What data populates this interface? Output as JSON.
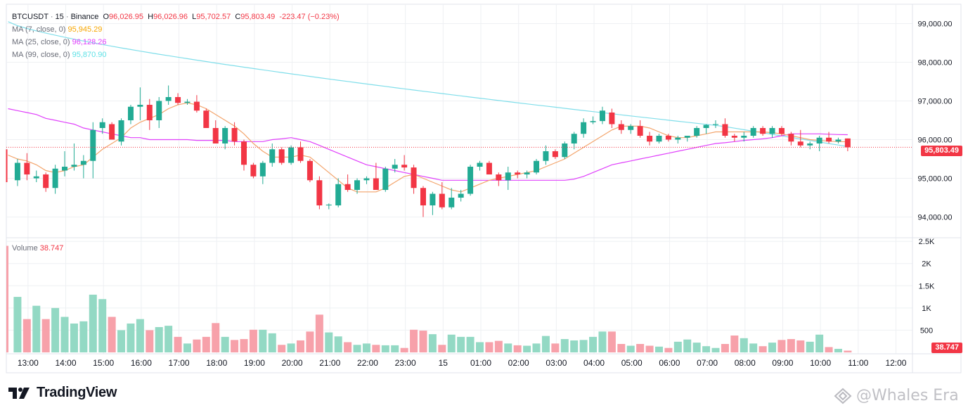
{
  "header": {
    "symbol": "BTCUSDT",
    "interval": "15",
    "exchange": "Binance",
    "separator": "·",
    "o_label": "O",
    "o_value": "96,026.95",
    "h_label": "H",
    "h_value": "96,026.96",
    "l_label": "L",
    "l_value": "95,702.57",
    "c_label": "C",
    "c_value": "95,803.49",
    "change": "-223.47 (−0.23%)"
  },
  "indicators": [
    {
      "label": "MA (7, close, 0)",
      "value": "95,945.29",
      "color": "#f7a600"
    },
    {
      "label": "MA (25, close, 0)",
      "value": "96,128.26",
      "color": "#e040fb"
    },
    {
      "label": "MA (99, close, 0)",
      "value": "95,870.90",
      "color": "#5ce1e6"
    }
  ],
  "volume_legend": {
    "label": "Volume",
    "value": "38.747"
  },
  "last_price_badge": "95,803.49",
  "last_volume_badge": "38.747",
  "brand": {
    "name": "TradingView"
  },
  "watermark": {
    "text": "@Whales Era"
  },
  "colors": {
    "up": "#26a69a",
    "up_fill": "#22ab94",
    "down": "#f23645",
    "vol_up": "#93d9c4",
    "vol_down": "#f7a1aa",
    "ma7": "#f3a46b",
    "ma25": "#e040fb",
    "ma99": "#80deea",
    "grid": "#eef0f3",
    "axis_text": "#131722"
  },
  "chart_data": {
    "type": "candlestick",
    "title": "BTCUSDT · 15 · Binance",
    "price_axis": {
      "ylim": [
        93500,
        99500
      ],
      "ticks": [
        94000,
        95000,
        96000,
        97000,
        98000,
        99000
      ],
      "tick_labels": [
        "94,000.00",
        "95,000.00",
        "96,000.00",
        "97,000.00",
        "98,000.00",
        "99,000.00"
      ]
    },
    "volume_axis": {
      "ylim": [
        0,
        2550
      ],
      "ticks": [
        500,
        1000,
        1500,
        2000,
        2500
      ],
      "tick_labels": [
        "500",
        "1K",
        "1.5K",
        "2K",
        "2.5K"
      ]
    },
    "time_axis": {
      "tick_labels": [
        "13:00",
        "14:00",
        "15:00",
        "16:00",
        "17:00",
        "18:00",
        "19:00",
        "20:00",
        "21:00",
        "22:00",
        "23:00",
        "15",
        "01:00",
        "02:00",
        "03:00",
        "04:00",
        "05:00",
        "06:00",
        "07:00",
        "08:00",
        "09:00",
        "10:00",
        "11:00",
        "12:00"
      ],
      "first_tick_index": 2
    },
    "candles": [
      {
        "o": 95600,
        "h": 95750,
        "l": 94900,
        "c": 95000,
        "v": 2400
      },
      {
        "o": 94950,
        "h": 95500,
        "l": 94800,
        "c": 95400,
        "v": 1250
      },
      {
        "o": 95400,
        "h": 95650,
        "l": 94950,
        "c": 95100,
        "v": 750
      },
      {
        "o": 95000,
        "h": 95200,
        "l": 94900,
        "c": 95050,
        "v": 1050
      },
      {
        "o": 95100,
        "h": 95150,
        "l": 94650,
        "c": 94750,
        "v": 750
      },
      {
        "o": 94750,
        "h": 95350,
        "l": 94600,
        "c": 95250,
        "v": 1000
      },
      {
        "o": 95200,
        "h": 95700,
        "l": 95050,
        "c": 95300,
        "v": 800
      },
      {
        "o": 95300,
        "h": 95900,
        "l": 95200,
        "c": 95350,
        "v": 650
      },
      {
        "o": 95350,
        "h": 95600,
        "l": 95000,
        "c": 95450,
        "v": 700
      },
      {
        "o": 95450,
        "h": 96450,
        "l": 95000,
        "c": 96250,
        "v": 1300
      },
      {
        "o": 96300,
        "h": 96550,
        "l": 96150,
        "c": 96450,
        "v": 1200
      },
      {
        "o": 96400,
        "h": 96450,
        "l": 96000,
        "c": 96000,
        "v": 800
      },
      {
        "o": 95950,
        "h": 96550,
        "l": 95850,
        "c": 96500,
        "v": 500
      },
      {
        "o": 96500,
        "h": 96900,
        "l": 96400,
        "c": 96850,
        "v": 650
      },
      {
        "o": 96850,
        "h": 97350,
        "l": 96500,
        "c": 96900,
        "v": 750
      },
      {
        "o": 96900,
        "h": 97050,
        "l": 96250,
        "c": 96500,
        "v": 500
      },
      {
        "o": 96500,
        "h": 97100,
        "l": 96300,
        "c": 97000,
        "v": 570
      },
      {
        "o": 97000,
        "h": 97400,
        "l": 96900,
        "c": 97100,
        "v": 600
      },
      {
        "o": 97100,
        "h": 97200,
        "l": 96900,
        "c": 96950,
        "v": 350
      },
      {
        "o": 96950,
        "h": 97050,
        "l": 96900,
        "c": 96980,
        "v": 200
      },
      {
        "o": 96980,
        "h": 97150,
        "l": 96700,
        "c": 96750,
        "v": 290
      },
      {
        "o": 96750,
        "h": 96800,
        "l": 96300,
        "c": 96300,
        "v": 350
      },
      {
        "o": 96300,
        "h": 96500,
        "l": 95900,
        "c": 95900,
        "v": 660
      },
      {
        "o": 95900,
        "h": 96350,
        "l": 95750,
        "c": 96300,
        "v": 350
      },
      {
        "o": 96300,
        "h": 96450,
        "l": 95850,
        "c": 95950,
        "v": 280
      },
      {
        "o": 95950,
        "h": 96000,
        "l": 95200,
        "c": 95350,
        "v": 300
      },
      {
        "o": 95350,
        "h": 95400,
        "l": 95000,
        "c": 95050,
        "v": 510
      },
      {
        "o": 95050,
        "h": 95450,
        "l": 94850,
        "c": 95400,
        "v": 510
      },
      {
        "o": 95400,
        "h": 95900,
        "l": 95300,
        "c": 95750,
        "v": 430
      },
      {
        "o": 95750,
        "h": 95800,
        "l": 95350,
        "c": 95400,
        "v": 170
      },
      {
        "o": 95400,
        "h": 95850,
        "l": 95350,
        "c": 95800,
        "v": 200
      },
      {
        "o": 95800,
        "h": 95950,
        "l": 95400,
        "c": 95450,
        "v": 270
      },
      {
        "o": 95450,
        "h": 95500,
        "l": 94900,
        "c": 94950,
        "v": 470
      },
      {
        "o": 94950,
        "h": 95050,
        "l": 94200,
        "c": 94300,
        "v": 850
      },
      {
        "o": 94300,
        "h": 94350,
        "l": 94200,
        "c": 94320,
        "v": 450
      },
      {
        "o": 94300,
        "h": 95000,
        "l": 94250,
        "c": 94850,
        "v": 360
      },
      {
        "o": 94850,
        "h": 95100,
        "l": 94650,
        "c": 94700,
        "v": 230
      },
      {
        "o": 94700,
        "h": 95000,
        "l": 94600,
        "c": 94950,
        "v": 170
      },
      {
        "o": 94950,
        "h": 95050,
        "l": 94850,
        "c": 95000,
        "v": 200
      },
      {
        "o": 95000,
        "h": 95400,
        "l": 94700,
        "c": 94700,
        "v": 170
      },
      {
        "o": 94700,
        "h": 95300,
        "l": 94650,
        "c": 95250,
        "v": 160
      },
      {
        "o": 95250,
        "h": 95500,
        "l": 95150,
        "c": 95350,
        "v": 160
      },
      {
        "o": 95350,
        "h": 95600,
        "l": 95200,
        "c": 95280,
        "v": 100
      },
      {
        "o": 95280,
        "h": 95350,
        "l": 94600,
        "c": 94750,
        "v": 510
      },
      {
        "o": 94750,
        "h": 94800,
        "l": 94000,
        "c": 94300,
        "v": 490
      },
      {
        "o": 94300,
        "h": 94650,
        "l": 94050,
        "c": 94600,
        "v": 410
      },
      {
        "o": 94600,
        "h": 94900,
        "l": 94200,
        "c": 94250,
        "v": 170
      },
      {
        "o": 94250,
        "h": 94750,
        "l": 94200,
        "c": 94500,
        "v": 400
      },
      {
        "o": 94500,
        "h": 94700,
        "l": 94400,
        "c": 94600,
        "v": 350
      },
      {
        "o": 94600,
        "h": 95350,
        "l": 94550,
        "c": 95300,
        "v": 350
      },
      {
        "o": 95300,
        "h": 95450,
        "l": 95200,
        "c": 95400,
        "v": 230
      },
      {
        "o": 95400,
        "h": 95450,
        "l": 95100,
        "c": 95100,
        "v": 230
      },
      {
        "o": 95100,
        "h": 95150,
        "l": 94800,
        "c": 94950,
        "v": 260
      },
      {
        "o": 94950,
        "h": 95300,
        "l": 94700,
        "c": 95150,
        "v": 200
      },
      {
        "o": 95150,
        "h": 95200,
        "l": 95000,
        "c": 95100,
        "v": 160
      },
      {
        "o": 95100,
        "h": 95200,
        "l": 95000,
        "c": 95150,
        "v": 150
      },
      {
        "o": 95150,
        "h": 95500,
        "l": 95100,
        "c": 95450,
        "v": 200
      },
      {
        "o": 95450,
        "h": 95850,
        "l": 95350,
        "c": 95700,
        "v": 370
      },
      {
        "o": 95700,
        "h": 95750,
        "l": 95500,
        "c": 95550,
        "v": 200
      },
      {
        "o": 95550,
        "h": 95950,
        "l": 95500,
        "c": 95900,
        "v": 300
      },
      {
        "o": 95900,
        "h": 96200,
        "l": 95750,
        "c": 96150,
        "v": 270
      },
      {
        "o": 96150,
        "h": 96550,
        "l": 96050,
        "c": 96450,
        "v": 280
      },
      {
        "o": 96450,
        "h": 96600,
        "l": 96400,
        "c": 96480,
        "v": 350
      },
      {
        "o": 96480,
        "h": 96850,
        "l": 96400,
        "c": 96750,
        "v": 470
      },
      {
        "o": 96700,
        "h": 96800,
        "l": 96300,
        "c": 96400,
        "v": 470
      },
      {
        "o": 96400,
        "h": 96500,
        "l": 96150,
        "c": 96250,
        "v": 190
      },
      {
        "o": 96250,
        "h": 96400,
        "l": 96150,
        "c": 96350,
        "v": 150
      },
      {
        "o": 96350,
        "h": 96500,
        "l": 96050,
        "c": 96100,
        "v": 190
      },
      {
        "o": 96100,
        "h": 96200,
        "l": 95850,
        "c": 95950,
        "v": 150
      },
      {
        "o": 95950,
        "h": 96150,
        "l": 95900,
        "c": 96100,
        "v": 130
      },
      {
        "o": 96100,
        "h": 96150,
        "l": 95950,
        "c": 96000,
        "v": 100
      },
      {
        "o": 96000,
        "h": 96100,
        "l": 95900,
        "c": 96050,
        "v": 240
      },
      {
        "o": 96050,
        "h": 96100,
        "l": 95950,
        "c": 96100,
        "v": 290
      },
      {
        "o": 96100,
        "h": 96350,
        "l": 96050,
        "c": 96300,
        "v": 220
      },
      {
        "o": 96300,
        "h": 96400,
        "l": 96150,
        "c": 96380,
        "v": 140
      },
      {
        "o": 96380,
        "h": 96500,
        "l": 96300,
        "c": 96400,
        "v": 100
      },
      {
        "o": 96400,
        "h": 96550,
        "l": 96050,
        "c": 96100,
        "v": 190
      },
      {
        "o": 96100,
        "h": 96150,
        "l": 95950,
        "c": 96050,
        "v": 380
      },
      {
        "o": 96050,
        "h": 96200,
        "l": 95950,
        "c": 96100,
        "v": 320
      },
      {
        "o": 96100,
        "h": 96350,
        "l": 96050,
        "c": 96300,
        "v": 200
      },
      {
        "o": 96300,
        "h": 96350,
        "l": 96100,
        "c": 96150,
        "v": 140
      },
      {
        "o": 96150,
        "h": 96350,
        "l": 96050,
        "c": 96300,
        "v": 220
      },
      {
        "o": 96300,
        "h": 96350,
        "l": 96100,
        "c": 96150,
        "v": 280
      },
      {
        "o": 96150,
        "h": 96200,
        "l": 95850,
        "c": 95950,
        "v": 300
      },
      {
        "o": 95950,
        "h": 96250,
        "l": 95800,
        "c": 95850,
        "v": 270
      },
      {
        "o": 95850,
        "h": 95950,
        "l": 95750,
        "c": 95900,
        "v": 240
      },
      {
        "o": 95900,
        "h": 96100,
        "l": 95700,
        "c": 96050,
        "v": 400
      },
      {
        "o": 96050,
        "h": 96200,
        "l": 95900,
        "c": 95950,
        "v": 120
      },
      {
        "o": 95950,
        "h": 96050,
        "l": 95900,
        "c": 96000,
        "v": 80
      },
      {
        "o": 96030,
        "h": 96030,
        "l": 95700,
        "c": 95803,
        "v": 39
      }
    ],
    "ma7": [
      95600,
      95500,
      95450,
      95350,
      95200,
      95150,
      95200,
      95300,
      95350,
      95550,
      95750,
      95900,
      96050,
      96300,
      96450,
      96550,
      96650,
      96800,
      96900,
      96950,
      96900,
      96800,
      96650,
      96500,
      96350,
      96150,
      95900,
      95700,
      95550,
      95550,
      95550,
      95600,
      95550,
      95350,
      95150,
      94950,
      94750,
      94650,
      94650,
      94650,
      94750,
      94900,
      95050,
      95100,
      95000,
      94900,
      94800,
      94700,
      94650,
      94750,
      94850,
      94950,
      95000,
      95050,
      95100,
      95150,
      95200,
      95300,
      95400,
      95500,
      95650,
      95800,
      95950,
      96100,
      96250,
      96350,
      96350,
      96350,
      96300,
      96200,
      96100,
      96050,
      96050,
      96100,
      96150,
      96200,
      96200,
      96200,
      96200,
      96200,
      96200,
      96180,
      96150,
      96100,
      96050,
      96000,
      95980,
      95960,
      95950,
      95945
    ],
    "ma25": [
      96800,
      96750,
      96700,
      96650,
      96550,
      96500,
      96450,
      96400,
      96300,
      96250,
      96200,
      96150,
      96100,
      96050,
      96050,
      96000,
      96000,
      96000,
      96000,
      96000,
      95980,
      95980,
      95980,
      95980,
      95950,
      95950,
      95950,
      95950,
      96000,
      96020,
      96050,
      96000,
      95950,
      95850,
      95750,
      95650,
      95550,
      95450,
      95350,
      95300,
      95250,
      95200,
      95150,
      95100,
      95050,
      95000,
      94950,
      94950,
      94950,
      94950,
      94950,
      94950,
      94950,
      94950,
      94950,
      94950,
      94950,
      94950,
      94950,
      94950,
      94980,
      95050,
      95150,
      95250,
      95350,
      95400,
      95450,
      95500,
      95550,
      95600,
      95650,
      95700,
      95750,
      95800,
      95850,
      95900,
      95920,
      95950,
      95980,
      96000,
      96020,
      96050,
      96100,
      96150,
      96150,
      96150,
      96150,
      96140,
      96130,
      96128
    ]
  }
}
